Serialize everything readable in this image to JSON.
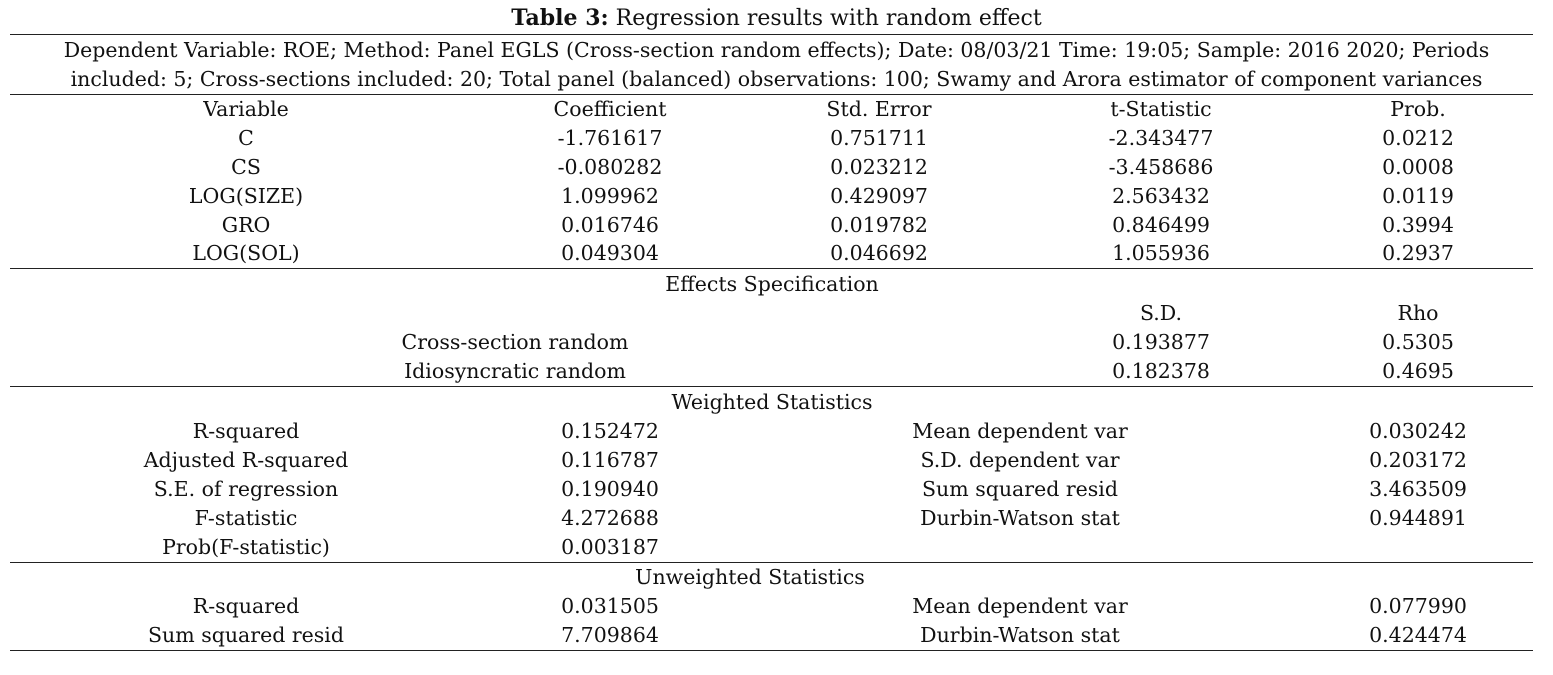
{
  "caption": {
    "label": "Table 3:",
    "title": "Regression results with random effect"
  },
  "info": {
    "line1": "Dependent Variable: ROE; Method: Panel EGLS (Cross-section random effects); Date: 08/03/21 Time: 19:05; Sample: 2016 2020; Periods",
    "line2": "included: 5; Cross-sections included: 20; Total panel (balanced) observations: 100; Swamy and Arora estimator of component variances"
  },
  "coef_table": {
    "headers": [
      "Variable",
      "Coefficient",
      "Std. Error",
      "t-Statistic",
      "Prob."
    ],
    "rows": [
      [
        "C",
        "-1.761617",
        "0.751711",
        "-2.343477",
        "0.0212"
      ],
      [
        "CS",
        "-0.080282",
        "0.023212",
        "-3.458686",
        "0.0008"
      ],
      [
        "LOG(SIZE)",
        "1.099962",
        "0.429097",
        "2.563432",
        "0.0119"
      ],
      [
        "GRO",
        "0.016746",
        "0.019782",
        "0.846499",
        "0.3994"
      ],
      [
        "LOG(SOL)",
        "0.049304",
        "0.046692",
        "1.055936",
        "0.2937"
      ]
    ]
  },
  "effects": {
    "title": "Effects Specification",
    "headers": [
      "S.D.",
      "Rho"
    ],
    "rows": [
      [
        "Cross-section random",
        "0.193877",
        "0.5305"
      ],
      [
        "Idiosyncratic random",
        "0.182378",
        "0.4695"
      ]
    ]
  },
  "weighted": {
    "title": "Weighted Statistics",
    "rows": [
      [
        "R-squared",
        "0.152472",
        "Mean dependent var",
        "0.030242"
      ],
      [
        "Adjusted R-squared",
        "0.116787",
        "S.D. dependent var",
        "0.203172"
      ],
      [
        "S.E. of regression",
        "0.190940",
        "Sum squared resid",
        "3.463509"
      ],
      [
        "F-statistic",
        "4.272688",
        "Durbin-Watson stat",
        "0.944891"
      ],
      [
        "Prob(F-statistic)",
        "0.003187",
        "",
        ""
      ]
    ]
  },
  "unweighted": {
    "title": "Unweighted Statistics",
    "rows": [
      [
        "R-squared",
        "0.031505",
        "Mean dependent var",
        "0.077990"
      ],
      [
        "Sum squared resid",
        "7.709864",
        "Durbin-Watson stat",
        "0.424474"
      ]
    ]
  }
}
